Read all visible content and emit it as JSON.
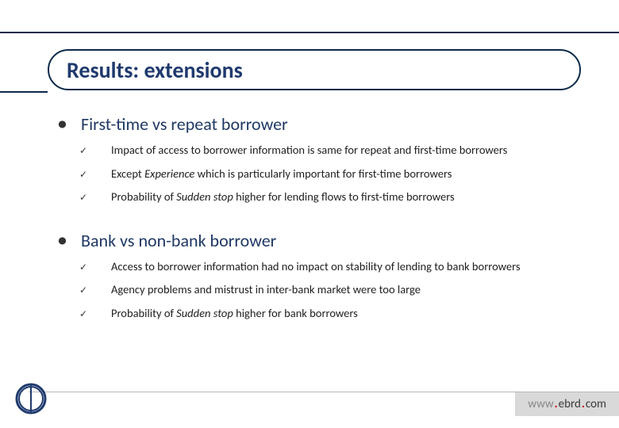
{
  "colors": {
    "brand": "#0b2a4a",
    "heading": "#1f3864",
    "body": "#202020",
    "footer_bg": "#d9d9d9",
    "accent_red": "#c00000"
  },
  "title": "Results: extensions",
  "sections": [
    {
      "heading": "First-time vs repeat borrower",
      "items": [
        "Impact of access to borrower information is same for repeat and first-time borrowers",
        "Except <em>Experience</em> which is particularly important for first-time borrowers",
        "Probability of <em>Sudden stop</em> higher for lending flows to first-time borrowers"
      ]
    },
    {
      "heading": "Bank vs non-bank borrower",
      "items": [
        "Access to borrower information had no impact on stability of lending to bank borrowers",
        "Agency problems and mistrust in inter-bank market were too large",
        "Probability of <em>Sudden stop</em> higher for bank borrowers"
      ]
    }
  ],
  "footer": {
    "url_parts": [
      "www",
      ".",
      "ebrd",
      ".",
      "com"
    ]
  }
}
